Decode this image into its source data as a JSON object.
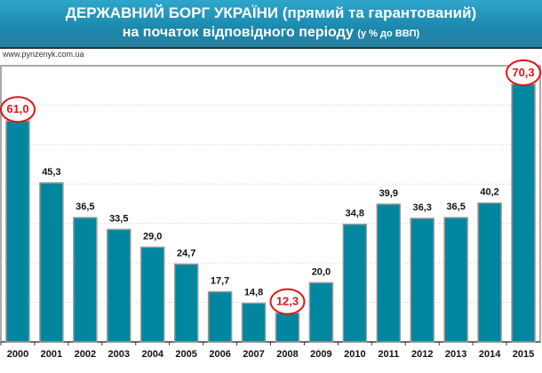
{
  "chart_data": {
    "type": "bar",
    "title": "ДЕРЖАВНИЙ БОРГ  УКРАЇНИ (прямий та гарантований)",
    "subtitle": "на початок відповідного періоду",
    "subtitle_unit": "(у % до ВВП)",
    "source": "www.pynzenyk.com.ua",
    "xlabel": "",
    "ylabel": "",
    "categories": [
      "2000",
      "2001",
      "2002",
      "2003",
      "2004",
      "2005",
      "2006",
      "2007",
      "2008",
      "2009",
      "2010",
      "2011",
      "2012",
      "2013",
      "2014",
      "2015"
    ],
    "values": [
      61.0,
      45.3,
      36.5,
      33.5,
      29.0,
      24.7,
      17.7,
      14.8,
      12.3,
      20.0,
      34.8,
      39.9,
      36.3,
      36.5,
      40.2,
      70.3
    ],
    "labels": [
      "61,0",
      "45,3",
      "36,5",
      "33,5",
      "29,0",
      "24,7",
      "17,7",
      "14,8",
      "12,3",
      "20,0",
      "34,8",
      "39,9",
      "36,3",
      "36,5",
      "40,2",
      "70,3"
    ],
    "highlighted": [
      "2000",
      "2008",
      "2015"
    ],
    "ylim": [
      5,
      75
    ],
    "grid": true,
    "bar_color": "#00869f",
    "highlight_color": "#e0161b"
  }
}
